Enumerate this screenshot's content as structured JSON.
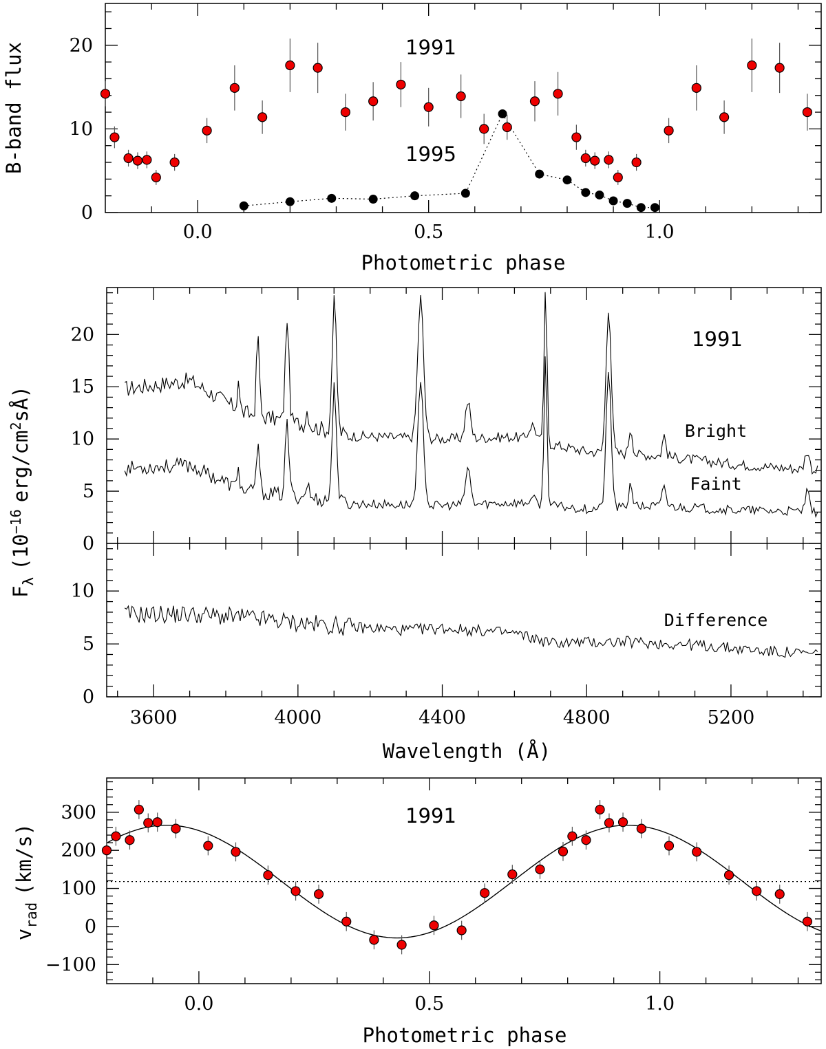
{
  "chart_data": [
    {
      "id": "lightcurve",
      "type": "scatter",
      "xlabel": "Photometric phase",
      "ylabel": "B-band flux",
      "xlim": [
        -0.2,
        1.35
      ],
      "ylim": [
        0,
        25
      ],
      "xticks": [
        "0.0",
        "0.5",
        "1.0"
      ],
      "xtick_values": [
        0.0,
        0.5,
        1.0
      ],
      "yticks": [
        "0",
        "10",
        "20"
      ],
      "ytick_values": [
        0,
        10,
        20
      ],
      "annotations": [
        "1991",
        "1995"
      ],
      "series": [
        {
          "name": "1991",
          "marker": "red-circle",
          "color": "#ee0000",
          "x": [
            -0.2,
            -0.18,
            -0.15,
            -0.13,
            -0.11,
            -0.09,
            -0.05,
            0.02,
            0.08,
            0.14,
            0.2,
            0.26,
            0.32,
            0.38,
            0.44,
            0.5,
            0.57,
            0.62,
            0.67,
            0.73,
            0.78,
            0.82,
            0.84,
            0.86,
            0.89,
            0.91,
            0.95,
            1.02,
            1.08,
            1.14,
            1.2,
            1.26,
            1.32
          ],
          "y": [
            14.2,
            9.0,
            6.5,
            6.2,
            6.3,
            4.2,
            6.0,
            9.8,
            14.9,
            11.4,
            17.6,
            17.3,
            12.0,
            13.3,
            15.3,
            12.6,
            13.9,
            10.0,
            10.2,
            13.3,
            14.2,
            9.0,
            6.5,
            6.2,
            6.3,
            4.2,
            6.0,
            9.8,
            14.9,
            11.4,
            17.6,
            17.3,
            12.0
          ],
          "yerr": [
            1.5,
            1.3,
            1.0,
            1.0,
            1.0,
            0.9,
            1.0,
            1.5,
            2.7,
            2.0,
            3.2,
            3.0,
            2.2,
            2.3,
            2.7,
            2.3,
            2.6,
            1.8,
            1.5,
            2.4,
            2.6,
            1.5,
            1.0,
            1.0,
            1.0,
            0.9,
            1.0,
            1.5,
            2.7,
            2.0,
            3.2,
            3.0,
            2.2
          ]
        },
        {
          "name": "1995",
          "marker": "black-circle",
          "color": "#000000",
          "line": "dotted",
          "x": [
            0.1,
            0.2,
            0.29,
            0.38,
            0.47,
            0.58,
            0.66,
            0.74,
            0.8,
            0.84,
            0.87,
            0.9,
            0.93,
            0.96,
            0.99
          ],
          "y": [
            0.8,
            1.3,
            1.7,
            1.6,
            2.0,
            2.3,
            11.8,
            4.6,
            3.9,
            2.4,
            2.1,
            1.4,
            1.1,
            0.6,
            0.6
          ]
        }
      ]
    },
    {
      "id": "spectra",
      "type": "line",
      "xlabel": "Wavelength (Å)",
      "ylabel_main": "F",
      "ylabel_sub": "λ",
      "ylabel_rest": "(10",
      "ylabel_exp": "−16",
      "ylabel_tail": "erg/cm",
      "ylabel_exp2": "2",
      "ylabel_end": "sÅ)",
      "xlim": [
        3470,
        5450
      ],
      "xticks": [
        "3600",
        "4000",
        "4400",
        "4800",
        "5200"
      ],
      "xtick_values": [
        3600,
        4000,
        4400,
        4800,
        5200
      ],
      "upper": {
        "ylim": [
          0,
          24.5
        ],
        "yticks": [
          "0",
          "5",
          "10",
          "15",
          "20"
        ],
        "ytick_values": [
          0,
          5,
          10,
          15,
          20
        ],
        "annotation": "1991",
        "series": [
          {
            "name": "Bright",
            "continuum": [
              [
                3520,
                14.8
              ],
              [
                3700,
                15.6
              ],
              [
                3850,
                12.5
              ],
              [
                4000,
                11.5
              ],
              [
                4150,
                10.3
              ],
              [
                4400,
                10.0
              ],
              [
                4600,
                10.2
              ],
              [
                4800,
                8.8
              ],
              [
                5000,
                8.4
              ],
              [
                5200,
                7.6
              ],
              [
                5440,
                7.0
              ]
            ],
            "noise": 1.0
          },
          {
            "name": "Faint",
            "continuum": [
              [
                3520,
                7.2
              ],
              [
                3700,
                7.5
              ],
              [
                3850,
                5.0
              ],
              [
                4000,
                4.5
              ],
              [
                4150,
                3.8
              ],
              [
                4400,
                3.6
              ],
              [
                4600,
                3.9
              ],
              [
                4800,
                3.3
              ],
              [
                5000,
                3.6
              ],
              [
                5200,
                3.2
              ],
              [
                5440,
                3.0
              ]
            ],
            "noise": 0.9
          }
        ],
        "lines": [
          {
            "wl": 3835,
            "w": 3,
            "b": 3.0,
            "f": 2.5
          },
          {
            "wl": 3889,
            "w": 4,
            "b": 8.0,
            "f": 5.0
          },
          {
            "wl": 3970,
            "w": 5,
            "b": 10.0,
            "f": 7.0
          },
          {
            "wl": 4026,
            "w": 4,
            "b": 1.5,
            "f": 1.5
          },
          {
            "wl": 4101,
            "w": 6,
            "b": 12.5,
            "f": 11.0
          },
          {
            "wl": 4340,
            "w": 8,
            "b": 13.5,
            "f": 11.5
          },
          {
            "wl": 4471,
            "w": 7,
            "b": 3.5,
            "f": 3.5
          },
          {
            "wl": 4650,
            "w": 10,
            "b": 1.5,
            "f": 0.5
          },
          {
            "wl": 4686,
            "w": 4,
            "b": 14.5,
            "f": 14.5
          },
          {
            "wl": 4861,
            "w": 7,
            "b": 14.0,
            "f": 13.0
          },
          {
            "wl": 4922,
            "w": 5,
            "b": 2.5,
            "f": 2.3
          },
          {
            "wl": 5015,
            "w": 5,
            "b": 2.0,
            "f": 2.0
          },
          {
            "wl": 5411,
            "w": 6,
            "b": 1.8,
            "f": 1.8
          }
        ],
        "labels": [
          "Bright",
          "Faint"
        ]
      },
      "lower": {
        "ylim": [
          0,
          14.5
        ],
        "yticks": [
          "0",
          "5",
          "10"
        ],
        "ytick_values": [
          0,
          5,
          10
        ],
        "series": [
          {
            "name": "Difference",
            "continuum": [
              [
                3520,
                7.8
              ],
              [
                3700,
                7.8
              ],
              [
                3850,
                7.5
              ],
              [
                4000,
                7.0
              ],
              [
                4150,
                6.6
              ],
              [
                4300,
                6.3
              ],
              [
                4400,
                6.5
              ],
              [
                4600,
                6.0
              ],
              [
                4700,
                5.1
              ],
              [
                4900,
                5.2
              ],
              [
                5100,
                4.9
              ],
              [
                5300,
                4.3
              ],
              [
                5440,
                4.0
              ]
            ],
            "noise": 1.1
          }
        ],
        "label": "Difference"
      }
    },
    {
      "id": "rv-curve",
      "type": "scatter",
      "xlabel": "Photometric phase",
      "ylabel_main": "v",
      "ylabel_sub": "rad",
      "ylabel_rest": "(km/s)",
      "xlim": [
        -0.2,
        1.35
      ],
      "ylim": [
        -150,
        390
      ],
      "xticks": [
        "0.0",
        "0.5",
        "1.0"
      ],
      "xtick_values": [
        0.0,
        0.5,
        1.0
      ],
      "yticks": [
        "−100",
        "0",
        "100",
        "200",
        "300"
      ],
      "ytick_values": [
        -100,
        0,
        100,
        200,
        300
      ],
      "annotation": "1991",
      "gamma": 118,
      "fit": {
        "gamma": 118,
        "K": 148,
        "phase_max": -0.07
      },
      "series": [
        {
          "name": "1991",
          "color": "#ee0000",
          "x": [
            -0.2,
            -0.18,
            -0.15,
            -0.13,
            -0.11,
            -0.09,
            -0.05,
            0.02,
            0.08,
            0.15,
            0.21,
            0.26,
            0.32,
            0.38,
            0.44,
            0.51,
            0.57,
            0.62,
            0.68,
            0.74,
            0.79,
            0.81,
            0.84,
            0.87,
            0.89,
            0.92,
            0.96,
            1.02,
            1.08,
            1.15,
            1.21,
            1.26,
            1.32
          ],
          "y": [
            200,
            237,
            227,
            307,
            272,
            274,
            257,
            212,
            196,
            135,
            93,
            85,
            13,
            -35,
            -48,
            3,
            -10,
            88,
            137,
            150,
            197,
            237,
            227,
            307,
            272,
            274,
            257,
            212,
            196,
            135,
            93,
            85,
            13
          ],
          "yerr": [
            25,
            25,
            25,
            25,
            25,
            25,
            25,
            25,
            25,
            25,
            25,
            25,
            25,
            25,
            25,
            25,
            25,
            25,
            25,
            25,
            25,
            25,
            25,
            25,
            25,
            25,
            25,
            25,
            25,
            25,
            25,
            25,
            25
          ]
        }
      ]
    }
  ]
}
